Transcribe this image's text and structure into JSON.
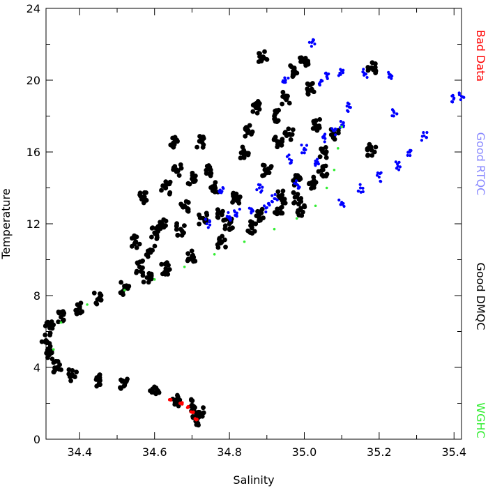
{
  "chart_data": {
    "type": "scatter",
    "title": "",
    "xlabel": "Salinity",
    "ylabel": "Temperature",
    "xlim": [
      34.31,
      35.42
    ],
    "ylim": [
      0,
      24
    ],
    "x_ticks": [
      34.4,
      34.6,
      34.8,
      35.0,
      35.2,
      35.4
    ],
    "x_tick_labels": [
      "34.4",
      "34.6",
      "34.8",
      "35.0",
      "35.2",
      "35.4"
    ],
    "y_ticks": [
      0,
      4,
      8,
      12,
      16,
      20,
      24
    ],
    "y_tick_labels": [
      "0",
      "4",
      "8",
      "12",
      "16",
      "20",
      "24"
    ],
    "grid": false,
    "legend_position": "right-vertical",
    "legend": [
      {
        "name": "Bad Data",
        "color": "#ff0000"
      },
      {
        "name": "Good RTQC",
        "color": "#8a8aff"
      },
      {
        "name": "Good DMQC",
        "color": "#000000"
      },
      {
        "name": "WGHC",
        "color": "#33ee33"
      }
    ],
    "series": [
      {
        "name": "Good DMQC",
        "color": "#000000",
        "points": [
          [
            34.71,
            1.0
          ],
          [
            34.72,
            1.5
          ],
          [
            34.7,
            1.9
          ],
          [
            34.66,
            2.2
          ],
          [
            34.6,
            2.6
          ],
          [
            34.52,
            3.0
          ],
          [
            34.45,
            3.3
          ],
          [
            34.38,
            3.6
          ],
          [
            34.34,
            4.0
          ],
          [
            34.32,
            4.8
          ],
          [
            34.31,
            5.5
          ],
          [
            34.32,
            6.2
          ],
          [
            34.35,
            6.8
          ],
          [
            34.4,
            7.3
          ],
          [
            34.45,
            7.8
          ],
          [
            34.52,
            8.4
          ],
          [
            34.58,
            9.0
          ],
          [
            34.63,
            9.5
          ],
          [
            34.7,
            10.2
          ],
          [
            34.78,
            11.0
          ],
          [
            34.86,
            11.8
          ],
          [
            34.93,
            12.6
          ],
          [
            34.98,
            13.5
          ],
          [
            35.02,
            14.3
          ],
          [
            35.05,
            15.0
          ],
          [
            34.55,
            11.0
          ],
          [
            34.57,
            13.5
          ],
          [
            34.6,
            11.5
          ],
          [
            34.62,
            12.0
          ],
          [
            34.63,
            14.0
          ],
          [
            34.65,
            16.5
          ],
          [
            34.66,
            15.0
          ],
          [
            34.68,
            13.0
          ],
          [
            34.7,
            14.5
          ],
          [
            34.72,
            16.6
          ],
          [
            34.75,
            15.0
          ],
          [
            34.76,
            14.0
          ],
          [
            34.78,
            12.5
          ],
          [
            34.8,
            12.0
          ],
          [
            34.82,
            13.5
          ],
          [
            34.84,
            16.0
          ],
          [
            34.85,
            17.2
          ],
          [
            34.87,
            18.5
          ],
          [
            34.89,
            21.3
          ],
          [
            34.9,
            15.0
          ],
          [
            34.92,
            18.0
          ],
          [
            34.93,
            16.5
          ],
          [
            34.95,
            19.0
          ],
          [
            34.96,
            17.0
          ],
          [
            34.97,
            20.5
          ],
          [
            34.98,
            14.5
          ],
          [
            35.0,
            21.0
          ],
          [
            35.02,
            19.5
          ],
          [
            35.03,
            17.5
          ],
          [
            35.05,
            16.0
          ],
          [
            35.08,
            17.0
          ],
          [
            35.18,
            20.7
          ],
          [
            35.18,
            16.1
          ],
          [
            34.99,
            12.8
          ],
          [
            34.94,
            13.5
          ],
          [
            34.88,
            12.5
          ],
          [
            34.73,
            12.3
          ],
          [
            34.67,
            11.7
          ],
          [
            34.59,
            10.5
          ],
          [
            34.56,
            9.6
          ]
        ]
      },
      {
        "name": "Good RTQC",
        "color": "#0000ff",
        "points": [
          [
            34.74,
            12.0
          ],
          [
            34.8,
            12.4
          ],
          [
            34.86,
            12.8
          ],
          [
            34.92,
            13.4
          ],
          [
            34.98,
            14.2
          ],
          [
            35.03,
            15.5
          ],
          [
            35.05,
            16.8
          ],
          [
            35.08,
            17.2
          ],
          [
            35.1,
            17.5
          ],
          [
            34.88,
            14.0
          ],
          [
            34.95,
            20.0
          ],
          [
            35.02,
            22.1
          ],
          [
            35.04,
            19.8
          ],
          [
            35.06,
            20.2
          ],
          [
            35.1,
            20.5
          ],
          [
            35.16,
            20.4
          ],
          [
            35.23,
            20.3
          ],
          [
            35.24,
            18.2
          ],
          [
            35.32,
            16.9
          ],
          [
            35.4,
            19.0
          ],
          [
            35.42,
            19.1
          ],
          [
            35.1,
            13.2
          ],
          [
            35.15,
            14.0
          ],
          [
            35.2,
            14.6
          ],
          [
            35.25,
            15.2
          ],
          [
            35.28,
            16.0
          ],
          [
            34.9,
            12.9
          ],
          [
            34.82,
            12.6
          ],
          [
            34.96,
            15.6
          ],
          [
            35.12,
            18.5
          ],
          [
            35.0,
            16.2
          ],
          [
            34.78,
            13.8
          ]
        ]
      },
      {
        "name": "WGHC",
        "color": "#33ee33",
        "points": [
          [
            34.33,
            5.0
          ],
          [
            34.35,
            6.5
          ],
          [
            34.42,
            7.5
          ],
          [
            34.52,
            8.3
          ],
          [
            34.6,
            8.9
          ],
          [
            34.68,
            9.6
          ],
          [
            34.76,
            10.3
          ],
          [
            34.84,
            11.0
          ],
          [
            34.92,
            11.7
          ],
          [
            34.98,
            12.3
          ],
          [
            35.03,
            13.0
          ],
          [
            35.06,
            14.0
          ],
          [
            35.08,
            15.0
          ],
          [
            35.09,
            16.2
          ],
          [
            35.1,
            17.4
          ]
        ]
      },
      {
        "name": "Bad Data",
        "color": "#ff0000",
        "points": [
          [
            34.64,
            2.2
          ],
          [
            34.67,
            2.0
          ],
          [
            34.69,
            1.8
          ],
          [
            34.7,
            1.5
          ],
          [
            34.71,
            1.1
          ]
        ]
      }
    ]
  }
}
